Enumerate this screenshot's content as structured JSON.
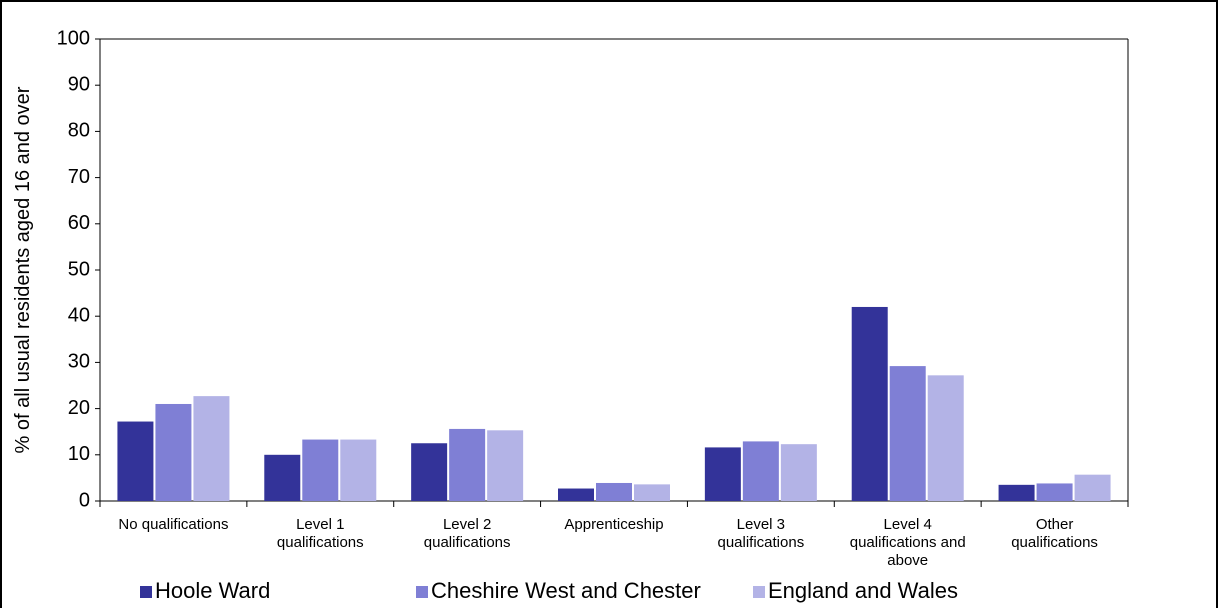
{
  "chart_data": {
    "type": "bar",
    "y_label": "% of all usual residents aged 16 and over",
    "categories": [
      "No qualifications",
      "Level 1 qualifications",
      "Level 2 qualifications",
      "Apprenticeship",
      "Level 3 qualifications",
      "Level 4 qualifications and above",
      "Other qualifications"
    ],
    "series": [
      {
        "name": "Hoole Ward",
        "color": "#333399",
        "values": [
          17.2,
          10,
          12.5,
          2.7,
          11.6,
          42,
          3.5
        ]
      },
      {
        "name": "Cheshire West and Chester",
        "color": "#7f7fd5",
        "values": [
          21,
          13.3,
          15.6,
          3.9,
          12.9,
          29.2,
          3.8
        ]
      },
      {
        "name": "England and Wales",
        "color": "#b3b3e6",
        "values": [
          22.7,
          13.3,
          15.3,
          3.6,
          12.3,
          27.2,
          5.7
        ]
      }
    ],
    "ylim": [
      0,
      100
    ],
    "yticks": [
      0,
      10,
      20,
      30,
      40,
      50,
      60,
      70,
      80,
      90,
      100
    ],
    "grid": false,
    "legend": "bottom"
  }
}
